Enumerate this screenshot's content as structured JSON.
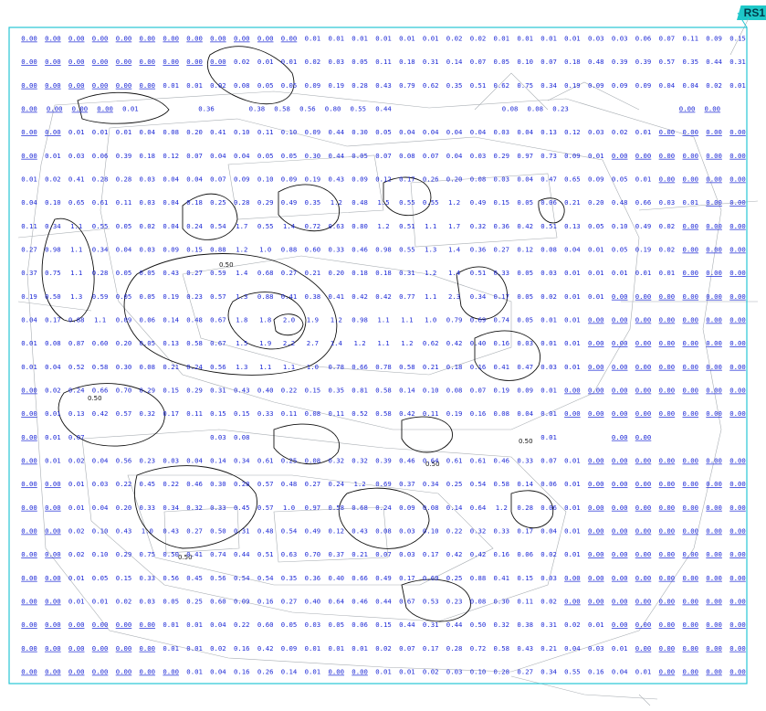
{
  "tag": "RS1",
  "colors": {
    "values": "#1f2bd6",
    "boundary": "#27c6d4",
    "drawing": "#9aa0a6",
    "contour": "#111111"
  },
  "contour_label": "0.50",
  "rows": [
    "0.00 0.00 0.00 0.00 0.00 0.00 0.00 0.00 0.00 0.00 0.00 0.00 0.01 0.01 0.01 0.01 0.01 0.01 0.02 0.02 0.01 0.01 0.01 0.01 0.03 0.03 0.06 0.07 0.11 0.09 0.15",
    "0.00 0.00 0.00 0.00 0.00 0.00 0.00 0.00 0.00 0.02 0.01 0.01 0.02 0.03 0.05 0.11 0.18 0.31 0.14 0.07 0.05 0.10 0.07 0.18 0.48 0.39 0.39 0.57 0.35 0.44 0.31",
    "0.00 0.00 0.00 0.00 0.00 0.00 0.01 0.01 0.02 0.08 0.05 0.05 0.09 0.19 0.28 0.43 0.79 0.62 0.35 0.51 0.62 0.75 0.34 0.19 0.09 0.09 0.09 0.04 0.04 0.02 0.01",
    "0.00 0.00 0.00 0.00 0.01 . . 0.36 . 0.38 0.58 0.56 0.80 0.55 0.44 . . . . 0.08 0.08 0.23 . . . . 0.00 0.00 .",
    "0.00 0.00 0.01 0.01 0.01 0.04 0.08 0.20 0.41 0.10 0.11 0.10 0.09 0.44 0.30 0.05 0.04 0.04 0.04 0.04 0.03 0.04 0.13 0.12 0.03 0.02 0.01 0.00 0.00 0.00 0.00",
    "0.00 0.01 0.03 0.06 0.39 0.18 0.12 0.07 0.04 0.04 0.05 0.05 0.30 0.44 0.05 0.07 0.08 0.07 0.04 0.03 0.29 0.97 0.73 0.09 0.01 0.00 0.00 0.00 0.00 0.00 0.00",
    "0.01 0.02 0.41 0.28 0.28 0.03 0.04 0.04 0.07 0.09 0.10 0.09 0.19 0.43 0.09 0.12 0.17 0.26 0.20 0.08 0.03 0.04 0.47 0.65 0.09 0.05 0.01 0.00 0.00 0.00 0.00",
    "0.04 0.10 0.65 0.61 0.11 0.03 0.04 0.18 0.25 0.28 0.29 0.49 0.35 1.2 0.48 1.5 0.55 0.55 1.2 0.49 0.15 0.05 0.06 0.21 0.20 0.48 0.66 0.03 0.01 0.00 0.00",
    "0.11 0.34 1.1 0.55 0.05 0.02 0.04 0.24 0.54 1.7 0.55 1.4 0.72 0.63 0.80 1.2 0.51 1.1 1.7 0.32 0.36 0.42 0.51 0.13 0.05 0.10 0.49 0.02 0.00 0.00 0.00",
    "0.27 0.98 1.1 0.34 0.04 0.03 0.09 0.15 0.88 1.2 1.0 0.88 0.60 0.33 0.46 0.98 0.55 1.3 1.4 0.36 0.27 0.12 0.08 0.04 0.01 0.05 0.19 0.02 0.00 0.00 0.00",
    "0.37 0.75 1.1 0.28 0.05 0.05 0.43 0.27 0.59 1.4 0.68 0.27 0.21 0.20 0.18 0.18 0.31 1.2 1.4 0.51 0.33 0.05 0.03 0.01 0.01 0.01 0.01 0.01 0.00 0.00 0.00",
    "0.19 0.50 1.3 0.59 0.05 0.05 0.19 0.23 0.57 1.3 0.88 0.41 0.38 0.41 0.42 0.42 0.77 1.1 2.3 0.34 0.17 0.05 0.02 0.01 0.01 0.00 0.00 0.00 0.00 0.00 0.00",
    "0.04 0.17 0.88 1.1 0.09 0.06 0.14 0.48 0.67 1.8 1.8 2.0 1.9 1.2 0.98 1.1 1.1 1.0 0.79 0.69 0.74 0.05 0.01 0.01 0.00 0.00 0.00 0.00 0.00 0.00 0.00",
    "0.01 0.08 0.87 0.60 0.20 0.05 0.13 0.58 0.67 1.5 1.9 2.2 2.7 1.4 1.2 1.1 1.2 0.62 0.42 0.40 0.16 0.03 0.01 0.01 0.00 0.00 0.00 0.00 0.00 0.00 0.00",
    "0.01 0.04 0.52 0.58 0.30 0.08 0.21 0.24 0.56 1.3 1.1 1.1 1.0 0.78 0.66 0.78 0.58 0.21 0.18 0.16 0.41 0.47 0.03 0.01 0.00 0.00 0.00 0.00 0.00 0.00 0.00",
    "0.00 0.02 0.24 0.66 0.70 0.29 0.15 0.29 0.31 0.43 0.40 0.22 0.15 0.35 0.81 0.58 0.14 0.10 0.08 0.07 0.19 0.09 0.01 0.00 0.00 0.00 0.00 0.00 0.00 0.00 0.00",
    "0.00 0.01 0.13 0.42 0.57 0.32 0.17 0.11 0.15 0.15 0.33 0.11 0.08 0.11 0.52 0.58 0.42 0.11 0.19 0.16 0.08 0.04 0.01 0.00 0.00 0.00 0.00 0.00 0.00 0.00 0.00",
    "0.00 0.01 0.07 . . . . . 0.03 0.08 . . . . . . . . . . . . 0.01 . . 0.00 0.00 . . . .",
    "0.00 0.01 0.02 0.04 0.56 0.23 0.03 0.04 0.14 0.34 0.61 0.25 0.08 0.32 0.32 0.39 0.46 0.64 0.61 0.61 0.46 0.33 0.07 0.01 0.00 0.00 0.00 0.00 0.00 0.00 0.00",
    "0.00 0.00 0.01 0.03 0.22 0.45 0.22 0.46 0.30 0.28 0.57 0.48 0.27 0.24 1.2 0.69 0.37 0.34 0.25 0.54 0.58 0.14 0.06 0.01 0.00 0.00 0.00 0.00 0.00 0.00 0.00",
    "0.00 0.00 0.01 0.04 0.20 0.33 0.34 0.32 0.33 0.45 0.57 1.0 0.97 0.58 0.68 0.24 0.09 0.08 0.14 0.64 1.2 0.28 0.06 0.01 0.00 0.00 0.00 0.00 0.00 0.00 0.00",
    "0.00 0.00 0.02 0.10 0.43 1.0 0.43 0.27 0.50 0.31 0.48 0.54 0.49 0.12 0.43 0.08 0.03 0.10 0.22 0.32 0.33 0.17 0.04 0.01 0.00 0.00 0.00 0.00 0.00 0.00 0.00",
    "0.00 0.00 0.02 0.10 0.29 0.75 0.50 0.41 0.74 0.44 0.51 0.63 0.70 0.37 0.21 0.07 0.03 0.17 0.42 0.42 0.16 0.06 0.02 0.01 0.00 0.00 0.00 0.00 0.00 0.00 0.00",
    "0.00 0.00 0.01 0.05 0.15 0.33 0.56 0.45 0.56 0.54 0.54 0.35 0.36 0.40 0.66 0.49 0.17 0.69 0.25 0.88 0.41 0.15 0.03 0.00 0.00 0.00 0.00 0.00 0.00 0.00 0.00",
    "0.00 0.00 0.01 0.01 0.02 0.03 0.05 0.25 0.60 0.09 0.16 0.27 0.40 0.64 0.46 0.44 0.67 0.53 0.23 0.08 0.30 0.11 0.02 0.00 0.00 0.00 0.00 0.00 0.00 0.00 0.00",
    "0.00 0.00 0.00 0.00 0.00 0.00 0.01 0.01 0.04 0.22 0.60 0.05 0.03 0.05 0.06 0.15 0.44 0.31 0.44 0.50 0.32 0.38 0.31 0.02 0.01 0.00 0.00 0.00 0.00 0.00 0.00",
    "0.00 0.00 0.00 0.00 0.00 0.00 0.01 0.01 0.02 0.16 0.42 0.09 0.01 0.01 0.01 0.02 0.07 0.17 0.28 0.72 0.58 0.43 0.21 0.04 0.03 0.01 0.00 0.00 0.00 0.00 0.00",
    "0.00 0.00 0.00 0.00 0.00 0.00 0.00 0.01 0.04 0.16 0.26 0.14 0.01 0.00 0.00 0.01 0.01 0.02 0.03 0.10 0.28 0.27 0.34 0.55 0.16 0.04 0.01 0.00 0.00 0.00 0.00"
  ]
}
